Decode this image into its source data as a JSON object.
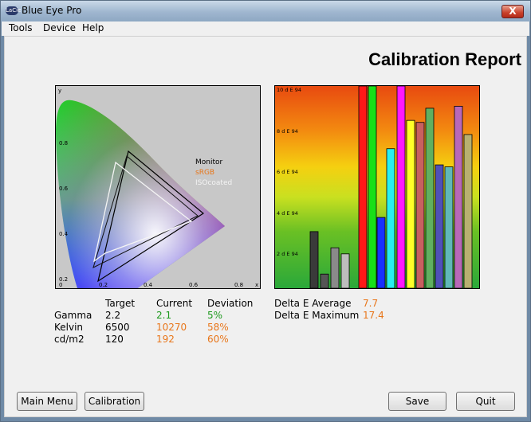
{
  "window": {
    "title": "Blue Eye Pro",
    "icon": "lacie-logo-icon",
    "close_glyph": "X"
  },
  "menu": [
    {
      "label": "Tools"
    },
    {
      "label": "Device"
    },
    {
      "label": "Help"
    }
  ],
  "report": {
    "title": "Calibration Report"
  },
  "gamut_chart": {
    "axis": {
      "y": "y",
      "x": "x",
      "y_ticks": [
        "0.8",
        "0.6",
        "0.4",
        "0.2"
      ],
      "x_ticks": [
        "0",
        "0.2",
        "0.4",
        "0.6",
        "0.8"
      ]
    },
    "legend": [
      {
        "name": "Monitor",
        "color": "#000000"
      },
      {
        "name": "sRGB",
        "color": "#e8761a"
      },
      {
        "name": "ISOcoated",
        "color": "#f4f4f4"
      }
    ]
  },
  "chart_data": {
    "type": "bar",
    "ylim": [
      0,
      10
    ],
    "y_ticks": [
      "10 d E 94",
      "8 d E 94",
      "6 d E 94",
      "4 d E 94",
      "2 d E 94"
    ],
    "bars": [
      {
        "value": 2.8,
        "color": "#3a3a3a"
      },
      {
        "value": 0.7,
        "color": "#555555"
      },
      {
        "value": 2.0,
        "color": "#8a8a8a"
      },
      {
        "value": 1.7,
        "color": "#bdbdbd"
      },
      {
        "value": 10,
        "color": "#ff1818"
      },
      {
        "value": 10,
        "color": "#18e018"
      },
      {
        "value": 3.5,
        "color": "#1830ff"
      },
      {
        "value": 6.9,
        "color": "#28f0f0"
      },
      {
        "value": 10,
        "color": "#ff18ff"
      },
      {
        "value": 8.3,
        "color": "#ffff28"
      },
      {
        "value": 8.2,
        "color": "#c86060"
      },
      {
        "value": 8.9,
        "color": "#60b060"
      },
      {
        "value": 6.1,
        "color": "#5050b8"
      },
      {
        "value": 6.0,
        "color": "#60b8b8"
      },
      {
        "value": 9.0,
        "color": "#b868b8"
      },
      {
        "value": 7.6,
        "color": "#b8b070"
      }
    ]
  },
  "stats": {
    "headers": {
      "target": "Target",
      "current": "Current",
      "deviation": "Deviation"
    },
    "rows": [
      {
        "label": "Gamma",
        "target": "2.2",
        "current": "2.1",
        "deviation": "5%",
        "current_color": "#1e9a1e",
        "deviation_color": "#1e9a1e"
      },
      {
        "label": "Kelvin",
        "target": "6500",
        "current": "10270",
        "deviation": "58%",
        "current_color": "#e8761a",
        "deviation_color": "#e8761a"
      },
      {
        "label": "cd/m2",
        "target": "120",
        "current": "192",
        "deviation": "60%",
        "current_color": "#e8761a",
        "deviation_color": "#e8761a"
      }
    ]
  },
  "delta_e": {
    "average": {
      "label": "Delta E Average",
      "value": "7.7",
      "color": "#e8761a"
    },
    "maximum": {
      "label": "Delta E Maximum",
      "value": "17.4",
      "color": "#e8761a"
    }
  },
  "buttons": {
    "main_menu": "Main Menu",
    "calibration": "Calibration",
    "save": "Save",
    "quit": "Quit"
  }
}
